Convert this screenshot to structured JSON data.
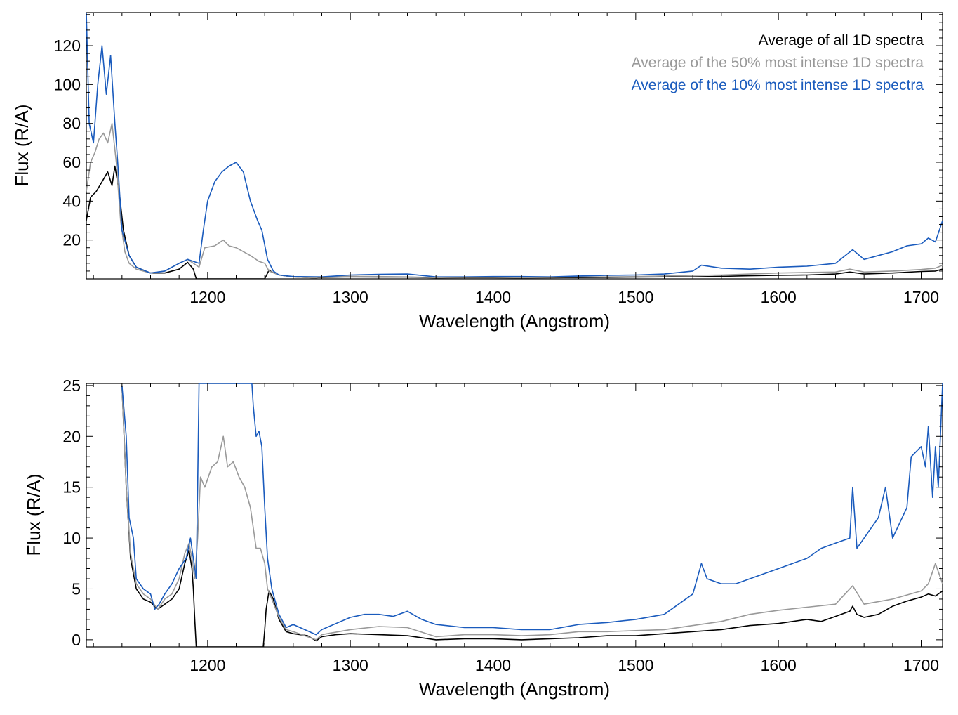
{
  "chart_data": [
    {
      "type": "line",
      "xlabel": "Wavelength (Angstrom)",
      "ylabel": "Flux (R/A)",
      "xlim": [
        1115,
        1715
      ],
      "ylim": [
        0,
        137
      ],
      "xticks": [
        1200,
        1300,
        1400,
        1500,
        1600,
        1700
      ],
      "xtick_labels": [
        "1200",
        "1300",
        "1400",
        "1500",
        "1600",
        "1700"
      ],
      "yticks": [
        20,
        40,
        60,
        80,
        100,
        120
      ],
      "ytick_labels": [
        "20",
        "40",
        "60",
        "80",
        "100",
        "120"
      ],
      "grid": false,
      "legend": "top-right",
      "series": [
        {
          "name": "Average of all 1D spectra",
          "color": "#000000",
          "x": [
            1115,
            1118,
            1122,
            1126,
            1130,
            1133,
            1135,
            1138,
            1141,
            1145,
            1150,
            1160,
            1170,
            1180,
            1186,
            1190,
            1192,
            1200,
            1240,
            1243,
            1245,
            1250,
            1260,
            1275,
            1280,
            1300,
            1320,
            1340,
            1360,
            1380,
            1400,
            1420,
            1440,
            1460,
            1480,
            1500,
            1520,
            1540,
            1560,
            1580,
            1600,
            1620,
            1640,
            1650,
            1660,
            1680,
            1700,
            1710,
            1715
          ],
          "y": [
            30,
            42,
            45,
            50,
            55,
            48,
            58,
            45,
            25,
            12,
            6,
            3,
            3,
            5,
            8.5,
            5,
            0,
            0,
            0,
            4.5,
            3.5,
            2,
            1,
            0.5,
            0.8,
            1,
            0.9,
            0.9,
            0.5,
            0.6,
            0.6,
            0.5,
            0.6,
            0.7,
            0.8,
            0.9,
            1,
            1,
            1.3,
            1.6,
            1.8,
            2,
            2.5,
            3.5,
            2.5,
            3,
            3.8,
            4,
            5
          ]
        },
        {
          "name": "Average of the 50% most intense 1D spectra",
          "color": "#999999",
          "x": [
            1115,
            1118,
            1121,
            1124,
            1127,
            1130,
            1133,
            1136,
            1139,
            1142,
            1145,
            1150,
            1160,
            1170,
            1180,
            1186,
            1190,
            1194,
            1198,
            1205,
            1211,
            1215,
            1220,
            1225,
            1230,
            1236,
            1240,
            1243,
            1250,
            1260,
            1275,
            1280,
            1300,
            1320,
            1340,
            1360,
            1380,
            1400,
            1420,
            1440,
            1460,
            1480,
            1500,
            1520,
            1540,
            1560,
            1580,
            1600,
            1620,
            1640,
            1650,
            1660,
            1680,
            1700,
            1710,
            1715
          ],
          "y": [
            45,
            60,
            65,
            72,
            75,
            70,
            80,
            60,
            30,
            14,
            8,
            5,
            3,
            4,
            8,
            10,
            8,
            6,
            16,
            17,
            20,
            17,
            16,
            14,
            12,
            9,
            8,
            4,
            2,
            1,
            0.5,
            1,
            1.3,
            1.2,
            1,
            0.6,
            0.8,
            0.8,
            0.6,
            0.8,
            1,
            1,
            1.2,
            1.5,
            1.8,
            2,
            2.5,
            3,
            3.3,
            3.5,
            5,
            3.5,
            4,
            4.8,
            5.5,
            7
          ]
        },
        {
          "name": "Average of the 10% most intense 1D spectra",
          "color": "#1a5bbd",
          "x": [
            1115,
            1117,
            1120,
            1123,
            1126,
            1129,
            1132,
            1135,
            1137,
            1140,
            1145,
            1150,
            1160,
            1170,
            1180,
            1186,
            1190,
            1194,
            1197,
            1200,
            1205,
            1210,
            1215,
            1220,
            1225,
            1230,
            1235,
            1238,
            1242,
            1246,
            1250,
            1260,
            1280,
            1300,
            1320,
            1340,
            1360,
            1380,
            1400,
            1420,
            1440,
            1460,
            1480,
            1500,
            1520,
            1540,
            1546,
            1560,
            1580,
            1600,
            1620,
            1640,
            1652,
            1660,
            1670,
            1680,
            1690,
            1700,
            1705,
            1710,
            1715
          ],
          "y": [
            137,
            80,
            70,
            100,
            120,
            95,
            115,
            80,
            60,
            25,
            12,
            6,
            3,
            4,
            8,
            10,
            9,
            8,
            25,
            40,
            50,
            55,
            58,
            60,
            55,
            40,
            30,
            25,
            10,
            4,
            2,
            1.2,
            1,
            2,
            2.3,
            2.5,
            1,
            1,
            1.2,
            1.2,
            1,
            1.5,
            1.8,
            2,
            2.5,
            4,
            7,
            5.5,
            5,
            6,
            6.5,
            8,
            15,
            10,
            12,
            14,
            17,
            18,
            21,
            19,
            30
          ]
        }
      ]
    },
    {
      "type": "line",
      "xlabel": "Wavelength (Angstrom)",
      "ylabel": "Flux (R/A)",
      "xlim": [
        1115,
        1715
      ],
      "ylim": [
        -0.7,
        25.2
      ],
      "xticks": [
        1200,
        1300,
        1400,
        1500,
        1600,
        1700
      ],
      "xtick_labels": [
        "1200",
        "1300",
        "1400",
        "1500",
        "1600",
        "1700"
      ],
      "yticks": [
        0,
        5,
        10,
        15,
        20,
        25
      ],
      "ytick_labels": [
        "0",
        "5",
        "10",
        "15",
        "20",
        "25"
      ],
      "grid": false,
      "series": [
        {
          "color": "#000000",
          "x": [
            1140,
            1143,
            1146,
            1150,
            1155,
            1160,
            1165,
            1170,
            1175,
            1180,
            1184,
            1187,
            1189,
            1190,
            1191,
            1192,
            1239,
            1240,
            1241,
            1243,
            1246,
            1250,
            1255,
            1260,
            1270,
            1276,
            1280,
            1290,
            1300,
            1320,
            1340,
            1360,
            1380,
            1400,
            1420,
            1440,
            1460,
            1480,
            1500,
            1520,
            1540,
            1560,
            1580,
            1600,
            1620,
            1630,
            1640,
            1650,
            1652,
            1655,
            1660,
            1670,
            1680,
            1690,
            1700,
            1705,
            1710,
            1715
          ],
          "y": [
            25,
            15,
            8,
            5,
            4,
            3.7,
            3,
            3.5,
            4,
            5,
            7.5,
            8.8,
            7,
            5,
            2,
            -0.7,
            -0.7,
            1,
            3,
            4.8,
            4,
            2,
            0.8,
            0.6,
            0.4,
            -0.1,
            0.3,
            0.5,
            0.6,
            0.5,
            0.4,
            0,
            0.1,
            0.1,
            0,
            0.1,
            0.2,
            0.4,
            0.4,
            0.6,
            0.8,
            1,
            1.4,
            1.6,
            2,
            1.8,
            2.3,
            2.8,
            3.3,
            2.5,
            2.2,
            2.5,
            3.3,
            3.8,
            4.2,
            4.5,
            4.3,
            4.8
          ]
        },
        {
          "color": "#999999",
          "x": [
            1140,
            1143,
            1146,
            1150,
            1155,
            1160,
            1165,
            1170,
            1175,
            1180,
            1184,
            1187,
            1189,
            1191,
            1193,
            1195,
            1198,
            1203,
            1207,
            1211,
            1214,
            1218,
            1222,
            1226,
            1230,
            1234,
            1237,
            1240,
            1242,
            1245,
            1250,
            1255,
            1260,
            1276,
            1280,
            1300,
            1320,
            1340,
            1360,
            1380,
            1400,
            1420,
            1440,
            1460,
            1480,
            1500,
            1520,
            1540,
            1560,
            1580,
            1600,
            1620,
            1640,
            1652,
            1660,
            1680,
            1700,
            1705,
            1710,
            1715
          ],
          "y": [
            25,
            15,
            8.5,
            5.5,
            4.5,
            4,
            3,
            4,
            4.5,
            6,
            8.5,
            9.5,
            8,
            6,
            10,
            16,
            15,
            17,
            17.5,
            20,
            17,
            17.5,
            16,
            15,
            13,
            9,
            9,
            7.5,
            5,
            4,
            2.2,
            1,
            0.8,
            0,
            0.5,
            1,
            1.3,
            1.2,
            0.3,
            0.5,
            0.5,
            0.4,
            0.5,
            0.8,
            0.8,
            0.9,
            1,
            1.4,
            1.8,
            2.5,
            2.9,
            3.2,
            3.5,
            5.3,
            3.5,
            4,
            4.8,
            5.5,
            7.5,
            5.5
          ]
        },
        {
          "color": "#1a5bbd",
          "x": [
            1140,
            1143,
            1145,
            1148,
            1150,
            1155,
            1160,
            1163,
            1166,
            1170,
            1175,
            1180,
            1185,
            1188,
            1190,
            1192,
            1193,
            1194,
            1231,
            1232,
            1234,
            1236,
            1238,
            1240,
            1242,
            1245,
            1250,
            1255,
            1260,
            1276,
            1280,
            1290,
            1300,
            1310,
            1320,
            1330,
            1340,
            1350,
            1360,
            1380,
            1400,
            1420,
            1440,
            1460,
            1480,
            1500,
            1520,
            1530,
            1540,
            1546,
            1550,
            1560,
            1570,
            1580,
            1590,
            1600,
            1610,
            1620,
            1630,
            1640,
            1650,
            1652,
            1655,
            1660,
            1670,
            1675,
            1680,
            1690,
            1693,
            1700,
            1703,
            1705,
            1708,
            1710,
            1712,
            1715
          ],
          "y": [
            25,
            20,
            12,
            10,
            6,
            5,
            4.5,
            3,
            3.5,
            4.5,
            5.5,
            7,
            8,
            10,
            8,
            6,
            15,
            25.2,
            25.2,
            23,
            20,
            20.5,
            19,
            13,
            8,
            5,
            2.5,
            1.2,
            1.5,
            0.5,
            1,
            1.6,
            2.2,
            2.5,
            2.5,
            2.3,
            2.8,
            2,
            1.5,
            1.2,
            1.2,
            1,
            1,
            1.5,
            1.7,
            2,
            2.5,
            3.5,
            4.5,
            7.5,
            6,
            5.5,
            5.5,
            6,
            6.5,
            7,
            7.5,
            8,
            9,
            9.5,
            10,
            15,
            9,
            10,
            12,
            15,
            10,
            13,
            18,
            19,
            17,
            21,
            14,
            19,
            15,
            25.2
          ]
        }
      ]
    }
  ]
}
